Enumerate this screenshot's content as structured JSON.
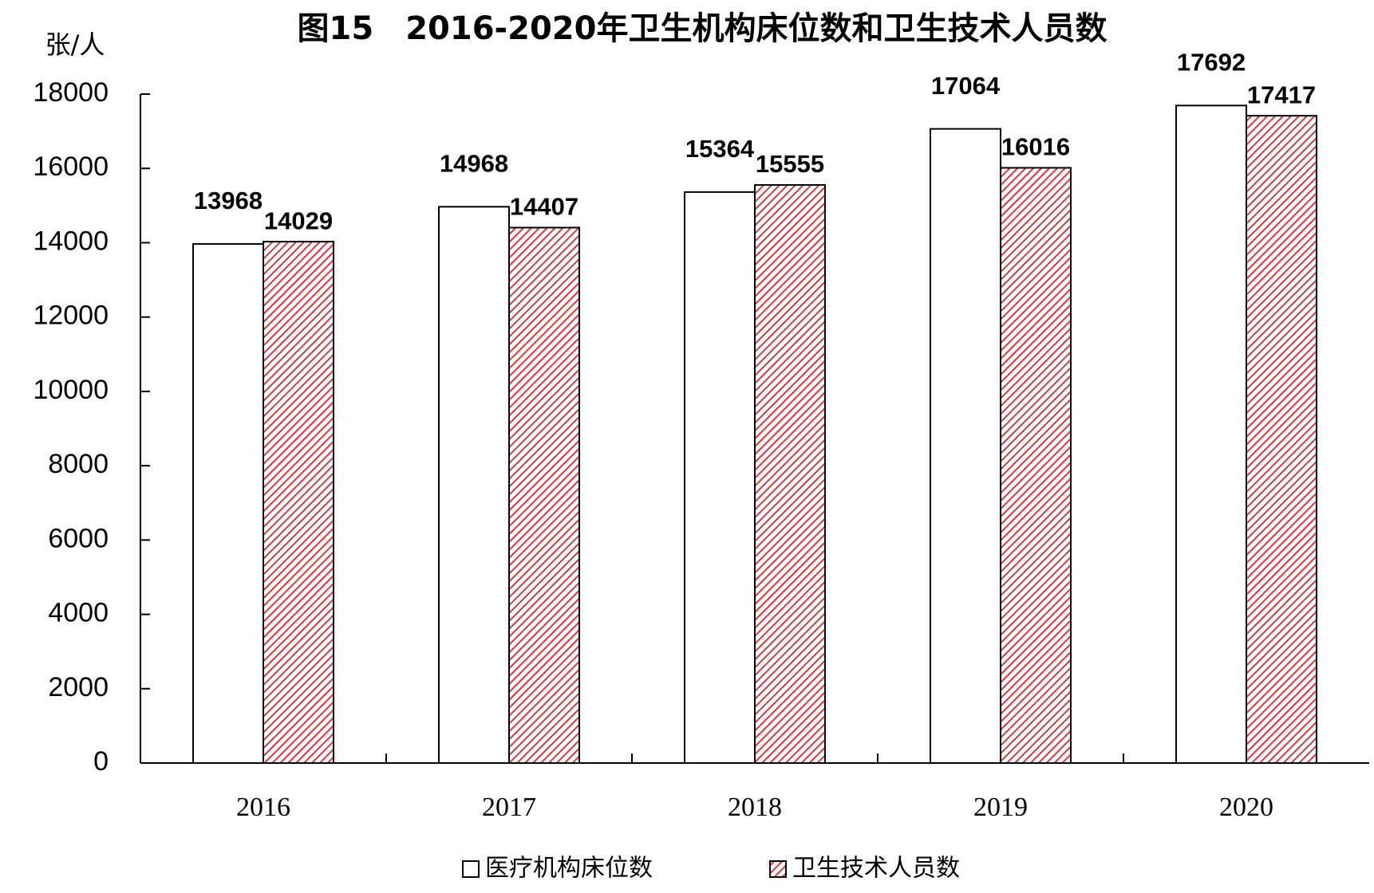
{
  "chart_data": {
    "type": "bar",
    "title": "图15　2016-2020年卫生机构床位数和卫生技术人员数",
    "y_label": "张/人",
    "categories": [
      "2016",
      "2017",
      "2018",
      "2019",
      "2020"
    ],
    "series": [
      {
        "name": "医疗机构床位数",
        "color": "#ffffff",
        "pattern": "solid",
        "values": [
          13968,
          14968,
          15364,
          17064,
          17692
        ]
      },
      {
        "name": "卫生技术人员数",
        "color": "#d9363e",
        "pattern": "hatch",
        "values": [
          14029,
          14407,
          15555,
          16016,
          17417
        ]
      }
    ],
    "ylim": [
      0,
      18000
    ],
    "yticks": [
      0,
      2000,
      4000,
      6000,
      8000,
      10000,
      12000,
      14000,
      16000,
      18000
    ],
    "grid": false,
    "legend": "bottom"
  }
}
